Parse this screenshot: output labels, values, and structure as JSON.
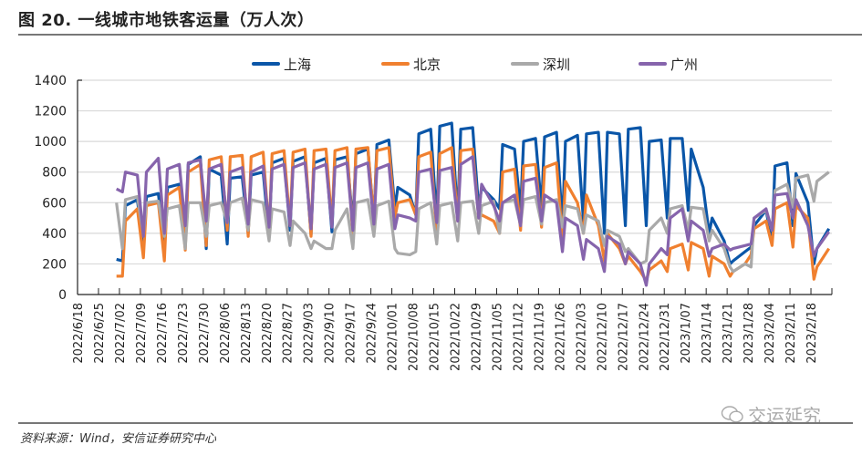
{
  "title": "图 20. 一线城市地铁客运量（万人次）",
  "source": "资料来源：Wind，安信证券研究中心",
  "watermark": "交运延究",
  "chart_data": {
    "type": "line",
    "title": "图 20. 一线城市地铁客运量（万人次）",
    "xlabel": "",
    "ylabel": "",
    "ylim": [
      0,
      1400
    ],
    "yticks": [
      0,
      200,
      400,
      600,
      800,
      1000,
      1200,
      1400
    ],
    "xlim": [
      "2022/6/18",
      "2023/2/25"
    ],
    "xticks": [
      "2022/6/18",
      "2022/6/25",
      "2022/7/02",
      "2022/7/09",
      "2022/7/16",
      "2022/7/23",
      "2022/7/30",
      "2022/8/06",
      "2022/8/13",
      "2022/8/20",
      "2022/8/27",
      "2022/9/03",
      "2022/9/10",
      "2022/9/17",
      "2022/9/24",
      "2022/10/01",
      "2022/10/08",
      "2022/10/15",
      "2022/10/22",
      "2022/10/29",
      "2022/11/05",
      "2022/11/12",
      "2022/11/19",
      "2022/11/26",
      "2022/12/03",
      "2022/12/10",
      "2022/12/17",
      "2022/12/24",
      "2022/12/31",
      "2023/1/07",
      "2023/1/14",
      "2023/1/21",
      "2023/1/28",
      "2023/2/04",
      "2023/2/11",
      "2023/2/18"
    ],
    "grid": true,
    "legend_position": "top",
    "x": [
      "2022/7/1",
      "2022/7/3",
      "2022/7/4",
      "2022/7/8",
      "2022/7/10",
      "2022/7/11",
      "2022/7/15",
      "2022/7/17",
      "2022/7/18",
      "2022/7/22",
      "2022/7/24",
      "2022/7/25",
      "2022/7/29",
      "2022/7/31",
      "2022/8/1",
      "2022/8/5",
      "2022/8/7",
      "2022/8/8",
      "2022/8/12",
      "2022/8/14",
      "2022/8/15",
      "2022/8/19",
      "2022/8/21",
      "2022/8/22",
      "2022/8/26",
      "2022/8/28",
      "2022/8/29",
      "2022/9/2",
      "2022/9/4",
      "2022/9/5",
      "2022/9/9",
      "2022/9/11",
      "2022/9/12",
      "2022/9/16",
      "2022/9/18",
      "2022/9/19",
      "2022/9/23",
      "2022/9/25",
      "2022/9/26",
      "2022/9/30",
      "2022/10/2",
      "2022/10/3",
      "2022/10/7",
      "2022/10/9",
      "2022/10/10",
      "2022/10/14",
      "2022/10/16",
      "2022/10/17",
      "2022/10/21",
      "2022/10/23",
      "2022/10/24",
      "2022/10/28",
      "2022/10/30",
      "2022/10/31",
      "2022/11/4",
      "2022/11/6",
      "2022/11/7",
      "2022/11/11",
      "2022/11/13",
      "2022/11/14",
      "2022/11/18",
      "2022/11/20",
      "2022/11/21",
      "2022/11/25",
      "2022/11/27",
      "2022/11/28",
      "2022/12/2",
      "2022/12/4",
      "2022/12/5",
      "2022/12/9",
      "2022/12/11",
      "2022/12/12",
      "2022/12/16",
      "2022/12/18",
      "2022/12/19",
      "2022/12/23",
      "2022/12/25",
      "2022/12/26",
      "2022/12/30",
      "2023/1/1",
      "2023/1/2",
      "2023/1/6",
      "2023/1/8",
      "2023/1/9",
      "2023/1/13",
      "2023/1/15",
      "2023/1/16",
      "2023/1/20",
      "2023/1/22",
      "2023/1/23",
      "2023/1/27",
      "2023/1/29",
      "2023/1/30",
      "2023/2/3",
      "2023/2/5",
      "2023/2/6",
      "2023/2/10",
      "2023/2/12",
      "2023/2/13",
      "2023/2/17",
      "2023/2/19",
      "2023/2/20",
      "2023/2/24"
    ],
    "series": [
      {
        "name": "上海",
        "color": "#0a56a8",
        "values": [
          230,
          220,
          580,
          620,
          300,
          640,
          660,
          310,
          700,
          720,
          380,
          850,
          900,
          300,
          820,
          780,
          330,
          760,
          770,
          400,
          780,
          800,
          380,
          860,
          890,
          420,
          870,
          900,
          390,
          860,
          890,
          410,
          880,
          900,
          460,
          920,
          950,
          480,
          980,
          1010,
          560,
          700,
          650,
          520,
          1050,
          1080,
          480,
          1100,
          1120,
          500,
          1080,
          1090,
          560,
          700,
          620,
          560,
          980,
          950,
          550,
          1000,
          1020,
          560,
          1030,
          1060,
          450,
          1000,
          1040,
          480,
          1050,
          1060,
          400,
          1060,
          1050,
          450,
          1080,
          1090,
          450,
          1000,
          1010,
          500,
          1020,
          1020,
          550,
          950,
          700,
          400,
          500,
          350,
          200,
          220,
          280,
          310,
          450,
          550,
          350,
          840,
          860,
          450,
          790,
          600,
          200,
          300,
          430
        ]
      },
      {
        "name": "北京",
        "color": "#f0802f",
        "values": [
          120,
          120,
          480,
          560,
          240,
          580,
          600,
          220,
          650,
          700,
          290,
          800,
          850,
          320,
          880,
          900,
          420,
          900,
          910,
          380,
          900,
          930,
          400,
          920,
          940,
          450,
          930,
          950,
          380,
          940,
          950,
          460,
          940,
          960,
          380,
          950,
          960,
          480,
          940,
          960,
          500,
          600,
          620,
          520,
          900,
          930,
          400,
          920,
          960,
          480,
          940,
          950,
          500,
          520,
          480,
          400,
          800,
          820,
          420,
          840,
          850,
          440,
          830,
          860,
          360,
          740,
          600,
          400,
          650,
          450,
          220,
          400,
          300,
          200,
          250,
          150,
          90,
          160,
          220,
          150,
          300,
          330,
          160,
          340,
          300,
          120,
          250,
          200,
          120,
          150,
          200,
          260,
          430,
          480,
          320,
          560,
          600,
          310,
          580,
          500,
          100,
          180,
          300
        ]
      },
      {
        "name": "深圳",
        "color": "#a9a9a9",
        "values": [
          600,
          300,
          620,
          640,
          390,
          600,
          610,
          380,
          560,
          580,
          300,
          600,
          600,
          380,
          580,
          600,
          470,
          600,
          630,
          420,
          620,
          600,
          350,
          560,
          540,
          320,
          480,
          400,
          300,
          350,
          300,
          300,
          420,
          560,
          300,
          600,
          620,
          380,
          580,
          610,
          300,
          270,
          260,
          280,
          560,
          600,
          330,
          580,
          600,
          350,
          600,
          610,
          400,
          580,
          610,
          400,
          600,
          620,
          450,
          620,
          640,
          460,
          600,
          620,
          440,
          580,
          560,
          400,
          520,
          480,
          320,
          420,
          380,
          280,
          300,
          200,
          220,
          420,
          500,
          400,
          560,
          580,
          420,
          570,
          560,
          350,
          420,
          300,
          180,
          150,
          200,
          180,
          500,
          550,
          420,
          680,
          720,
          570,
          760,
          780,
          610,
          740,
          800
        ]
      },
      {
        "name": "广州",
        "color": "#8664ac",
        "values": [
          690,
          670,
          800,
          780,
          380,
          800,
          890,
          400,
          820,
          850,
          450,
          860,
          880,
          480,
          820,
          850,
          470,
          800,
          830,
          460,
          800,
          840,
          440,
          820,
          850,
          450,
          830,
          860,
          430,
          820,
          850,
          440,
          830,
          860,
          420,
          830,
          860,
          460,
          820,
          850,
          430,
          520,
          500,
          480,
          800,
          820,
          470,
          810,
          830,
          480,
          850,
          900,
          500,
          720,
          580,
          480,
          600,
          650,
          450,
          740,
          760,
          480,
          650,
          600,
          280,
          500,
          450,
          230,
          360,
          300,
          150,
          380,
          330,
          200,
          280,
          200,
          60,
          200,
          300,
          260,
          500,
          560,
          350,
          480,
          420,
          250,
          300,
          330,
          290,
          300,
          320,
          330,
          500,
          560,
          420,
          650,
          660,
          500,
          620,
          450,
          250,
          300,
          410
        ]
      }
    ]
  }
}
